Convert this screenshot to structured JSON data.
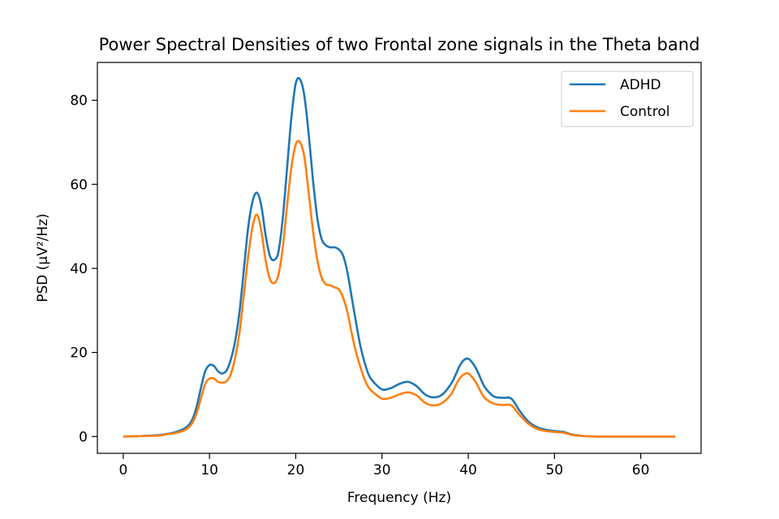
{
  "chart_data": {
    "type": "line",
    "title": "Power Spectral Densities of two Frontal zone signals in the Theta band",
    "xlabel": "Frequency (Hz)",
    "ylabel": "PSD (µV²/Hz)",
    "xlim": [
      -3,
      67
    ],
    "ylim": [
      -4,
      89
    ],
    "xticks": [
      0,
      10,
      20,
      30,
      40,
      50,
      60
    ],
    "yticks": [
      0,
      20,
      40,
      60,
      80
    ],
    "grid": false,
    "legend_position": "top-right",
    "x": [
      0,
      2,
      4,
      5,
      6,
      7,
      7.5,
      8,
      8.5,
      9,
      9.5,
      10,
      10.5,
      11,
      11.5,
      12,
      12.5,
      13,
      13.5,
      14,
      14.5,
      15,
      15.5,
      16,
      16.5,
      17,
      17.5,
      18,
      18.5,
      19,
      19.5,
      20,
      20.5,
      21,
      21.5,
      22,
      22.5,
      23,
      23.5,
      24,
      24.5,
      25,
      25.5,
      26,
      26.5,
      27,
      27.5,
      28,
      28.5,
      29,
      30,
      31,
      32,
      33,
      34,
      35,
      36,
      37,
      38,
      38.5,
      39,
      39.5,
      40,
      40.5,
      41,
      41.5,
      42,
      43,
      44,
      45,
      46,
      47,
      48,
      49,
      50,
      51,
      52,
      53,
      54,
      55,
      56,
      58,
      60,
      62,
      64
    ],
    "series": [
      {
        "name": "ADHD",
        "color": "#1f77b4",
        "values": [
          0,
          0.1,
          0.3,
          0.6,
          1.0,
          1.8,
          2.5,
          4.0,
          7.0,
          11.5,
          15.5,
          17.0,
          16.8,
          15.5,
          15.0,
          15.8,
          18.5,
          23.0,
          30.0,
          40.0,
          50.0,
          56.0,
          58.0,
          55.0,
          48.0,
          43.0,
          42.0,
          44.0,
          52.0,
          64.0,
          76.0,
          84.0,
          85.0,
          81.0,
          72.0,
          61.0,
          52.0,
          47.0,
          45.5,
          45.0,
          45.0,
          44.5,
          43.0,
          39.0,
          33.0,
          27.0,
          21.5,
          17.5,
          14.5,
          13.0,
          11.2,
          11.5,
          12.5,
          13.0,
          12.0,
          10.0,
          9.3,
          10.0,
          12.5,
          14.5,
          16.8,
          18.2,
          18.5,
          17.5,
          15.8,
          13.5,
          11.5,
          9.5,
          9.2,
          9.0,
          6.0,
          3.5,
          2.2,
          1.6,
          1.3,
          1.1,
          0.5,
          0.2,
          0.05,
          0,
          0,
          0,
          0,
          0,
          0
        ]
      },
      {
        "name": "Control",
        "color": "#ff7f0e",
        "values": [
          0,
          0.1,
          0.2,
          0.5,
          0.8,
          1.4,
          2.0,
          3.2,
          5.5,
          9.0,
          12.5,
          13.8,
          13.8,
          13.0,
          12.8,
          13.2,
          15.0,
          19.0,
          25.0,
          34.0,
          43.0,
          50.0,
          52.8,
          49.0,
          42.0,
          37.5,
          36.5,
          38.5,
          45.0,
          55.0,
          64.0,
          69.5,
          70.0,
          66.5,
          58.0,
          49.0,
          42.0,
          37.8,
          36.2,
          36.0,
          35.5,
          35.0,
          33.0,
          29.5,
          24.5,
          20.0,
          16.5,
          13.5,
          11.5,
          10.5,
          9.0,
          9.2,
          10.0,
          10.5,
          9.8,
          8.0,
          7.4,
          8.0,
          10.0,
          12.0,
          13.8,
          14.8,
          15.0,
          14.0,
          12.5,
          10.5,
          9.0,
          7.8,
          7.5,
          7.4,
          5.0,
          3.0,
          1.8,
          1.3,
          1.1,
          0.9,
          0.4,
          0.15,
          0.05,
          0,
          0,
          0,
          0,
          0,
          0
        ]
      }
    ]
  }
}
